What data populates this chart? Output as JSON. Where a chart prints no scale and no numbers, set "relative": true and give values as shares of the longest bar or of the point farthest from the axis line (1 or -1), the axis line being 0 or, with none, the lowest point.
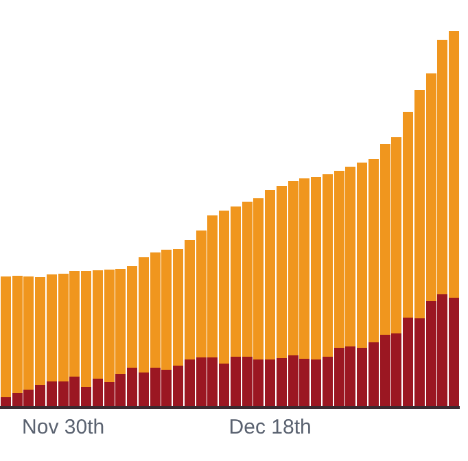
{
  "chart_data": {
    "type": "bar",
    "stacked": true,
    "relative": true,
    "legend": false,
    "categories": [
      null,
      null,
      null,
      null,
      null,
      "Nov 30th",
      null,
      null,
      null,
      null,
      null,
      null,
      null,
      null,
      null,
      null,
      null,
      null,
      null,
      null,
      null,
      null,
      null,
      "Dec 18th",
      null,
      null,
      null,
      null,
      null,
      null,
      null,
      null,
      null,
      null,
      null,
      null,
      null,
      null,
      null,
      null
    ],
    "series": [
      {
        "color": "#9b1722",
        "values": [
          0.023,
          0.035,
          0.043,
          0.056,
          0.065,
          0.065,
          0.079,
          0.051,
          0.074,
          0.064,
          0.085,
          0.103,
          0.09,
          0.103,
          0.097,
          0.107,
          0.124,
          0.13,
          0.129,
          0.114,
          0.131,
          0.131,
          0.124,
          0.124,
          0.128,
          0.136,
          0.127,
          0.124,
          0.131,
          0.155,
          0.159,
          0.155,
          0.17,
          0.19,
          0.193,
          0.236,
          0.234,
          0.28,
          0.297,
          0.288
        ]
      },
      {
        "color": "#f0961e",
        "values": [
          0.323,
          0.312,
          0.303,
          0.288,
          0.285,
          0.287,
          0.281,
          0.309,
          0.287,
          0.3,
          0.281,
          0.27,
          0.306,
          0.307,
          0.32,
          0.312,
          0.319,
          0.337,
          0.379,
          0.407,
          0.401,
          0.413,
          0.429,
          0.452,
          0.459,
          0.463,
          0.479,
          0.486,
          0.486,
          0.472,
          0.479,
          0.493,
          0.488,
          0.509,
          0.524,
          0.548,
          0.609,
          0.607,
          0.678,
          0.712
        ]
      }
    ]
  }
}
